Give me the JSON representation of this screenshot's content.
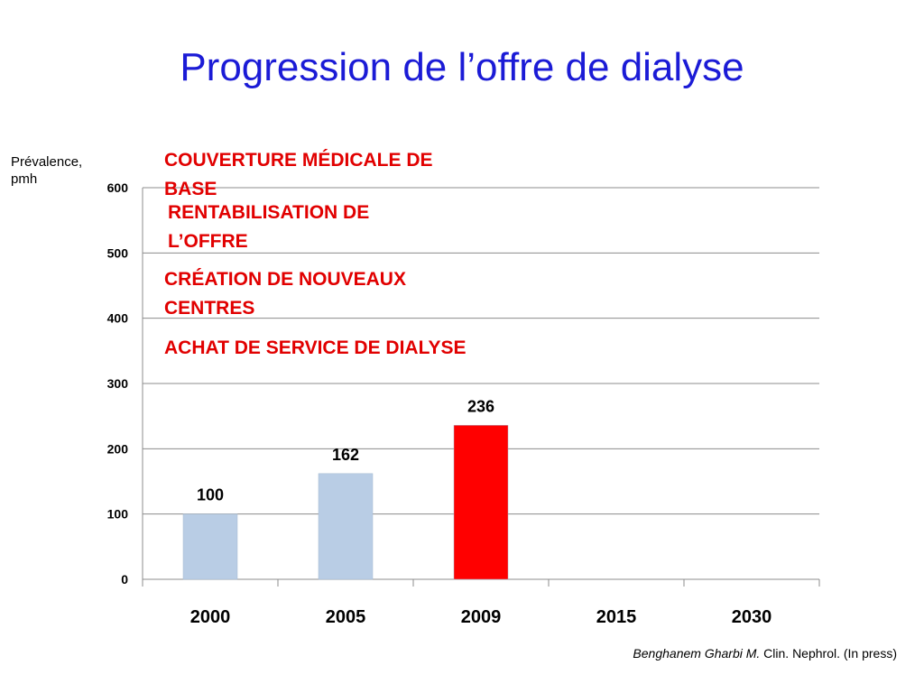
{
  "slide": {
    "title": "Progression de l’offre de dialyse",
    "y_axis_label_line1": "Prévalence,",
    "y_axis_label_line2": "pmh",
    "citation_author": "Benghanem Gharbi M.",
    "citation_journal": " Clin. Nephrol. (In press)",
    "annotations": [
      "COUVERTURE MÉDICALE DE BASE",
      "RENTABILISATION DE L’OFFRE",
      "CRÉATION DE NOUVEAUX CENTRES",
      "ACHAT DE SERVICE DE DIALYSE"
    ]
  },
  "chart_data": {
    "type": "bar",
    "categories": [
      "2000",
      "2005",
      "2009",
      "2015",
      "2030"
    ],
    "values": [
      100,
      162,
      236,
      null,
      null
    ],
    "data_labels": [
      "100",
      "162",
      "236",
      "",
      ""
    ],
    "bar_colors": [
      "#b9cde5",
      "#b9cde5",
      "#ff0000",
      "#b9cde5",
      "#b9cde5"
    ],
    "ylim": [
      0,
      600
    ],
    "yticks": [
      0,
      100,
      200,
      300,
      400,
      500,
      600
    ],
    "ytick_labels": [
      "0",
      "100",
      "200",
      "300",
      "400",
      "500",
      "600"
    ],
    "grid": true,
    "xlabel": "",
    "ylabel": ""
  }
}
